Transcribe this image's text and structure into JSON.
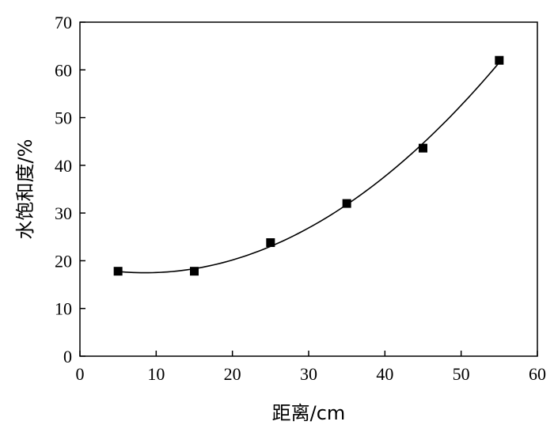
{
  "chart_data": {
    "type": "scatter",
    "xlabel": "距离/cm",
    "ylabel": "水饱和度/%",
    "xlim": [
      0,
      60
    ],
    "ylim": [
      0,
      70
    ],
    "x_ticks": [
      "0",
      "10",
      "20",
      "30",
      "40",
      "50",
      "60"
    ],
    "y_ticks": [
      "0",
      "10",
      "20",
      "30",
      "40",
      "50",
      "60",
      "70"
    ],
    "grid": false,
    "series": [
      {
        "marker": "square",
        "color": "#000000",
        "x": [
          5,
          15,
          25,
          35,
          45,
          55
        ],
        "y": [
          17.8,
          17.8,
          23.8,
          32.0,
          43.6,
          62.0
        ]
      }
    ],
    "fit_curve": {
      "type": "polynomial",
      "color": "#000000",
      "x_range": [
        5,
        55
      ]
    }
  }
}
